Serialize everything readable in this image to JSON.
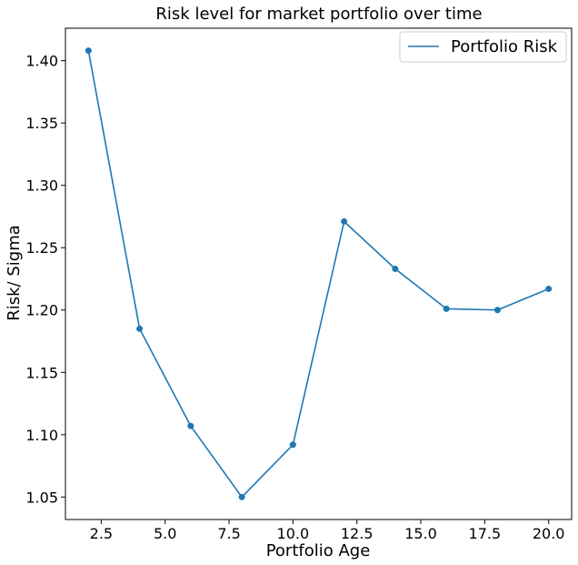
{
  "chart_data": {
    "type": "line",
    "title": "Risk level for market portfolio over time",
    "xlabel": "Portfolio Age",
    "ylabel": "Risk/ Sigma",
    "xlim": [
      1.1,
      20.9
    ],
    "ylim": [
      1.032,
      1.426
    ],
    "x_ticks": [
      2.5,
      5.0,
      7.5,
      10.0,
      12.5,
      15.0,
      17.5,
      20.0
    ],
    "x_tick_labels": [
      "2.5",
      "5.0",
      "7.5",
      "10.0",
      "12.5",
      "15.0",
      "17.5",
      "20.0"
    ],
    "y_ticks": [
      1.05,
      1.1,
      1.15,
      1.2,
      1.25,
      1.3,
      1.35,
      1.4
    ],
    "y_tick_labels": [
      "1.05",
      "1.10",
      "1.15",
      "1.20",
      "1.25",
      "1.30",
      "1.35",
      "1.40"
    ],
    "grid": false,
    "legend_position": "top-right",
    "series": [
      {
        "name": "Portfolio Risk",
        "color": "#1f77b4",
        "x": [
          2,
          4,
          6,
          8,
          10,
          12,
          14,
          16,
          18,
          20
        ],
        "y": [
          1.408,
          1.185,
          1.107,
          1.05,
          1.092,
          1.271,
          1.233,
          1.201,
          1.2,
          1.217
        ]
      }
    ]
  }
}
